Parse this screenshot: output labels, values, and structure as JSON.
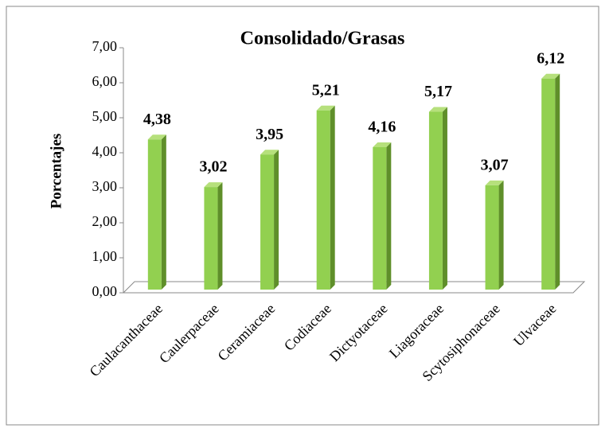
{
  "chart_data": {
    "type": "bar3d",
    "title": "Consolidado/Grasas",
    "y_label": "Porcentajes",
    "categories": [
      "Caulacanthaceae",
      "Caulerpaceae",
      "Ceramiaceae",
      "Codiaceae",
      "Dictyotaceae",
      "Liagoraceae",
      "Scytosiphonaceae",
      "Ulvaceae"
    ],
    "values": [
      4.38,
      3.02,
      3.95,
      5.21,
      4.16,
      5.17,
      3.07,
      6.12
    ],
    "value_labels": [
      "4,38",
      "3,02",
      "3,95",
      "5,21",
      "4,16",
      "5,17",
      "3,07",
      "6,12"
    ],
    "color": "#92d050",
    "ylim": [
      0,
      7
    ],
    "yticks": [
      {
        "value": 0,
        "label": "0,00"
      },
      {
        "value": 1,
        "label": "1,00"
      },
      {
        "value": 2,
        "label": "2,00"
      },
      {
        "value": 3,
        "label": "3,00"
      },
      {
        "value": 4,
        "label": "4,00"
      },
      {
        "value": 5,
        "label": "5,00"
      },
      {
        "value": 6,
        "label": "6,00"
      },
      {
        "value": 7,
        "label": "7,00"
      }
    ]
  }
}
